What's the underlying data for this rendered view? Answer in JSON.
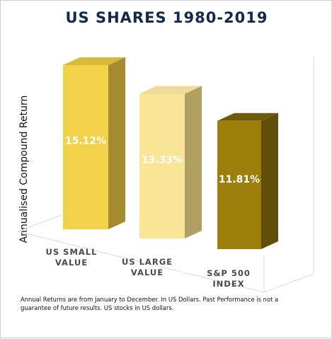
{
  "chart_data": {
    "type": "bar",
    "title": "US SHARES 1980-2019",
    "ylabel": "Annualised Compound Return",
    "xlabel": "",
    "categories": [
      [
        "US SMALL",
        "VALUE"
      ],
      [
        "US LARGE",
        "VALUE"
      ],
      [
        "S&P 500",
        "INDEX"
      ]
    ],
    "values": [
      15.12,
      13.33,
      11.81
    ],
    "data_labels": [
      "15.12%",
      "13.33%",
      "11.81%"
    ],
    "unit": "%",
    "grid": false,
    "legend": "none",
    "style": "3d-columns",
    "colors": {
      "bars": [
        "#f2d24b",
        "#f9e596",
        "#9c7f0b"
      ],
      "bar_sides": [
        "#a88a2e",
        "#b0a062",
        "#5f4d08"
      ],
      "bar_tops": [
        "#d9b93a",
        "#eedb9a",
        "#6e5a0a"
      ],
      "title": "#13294b",
      "floor_lines": "#dcdcdc"
    }
  },
  "footnote": "Annual Returns are from January to December. In US Dollars. Past Performance is not a guarantee of future results. US stocks in US dollars."
}
